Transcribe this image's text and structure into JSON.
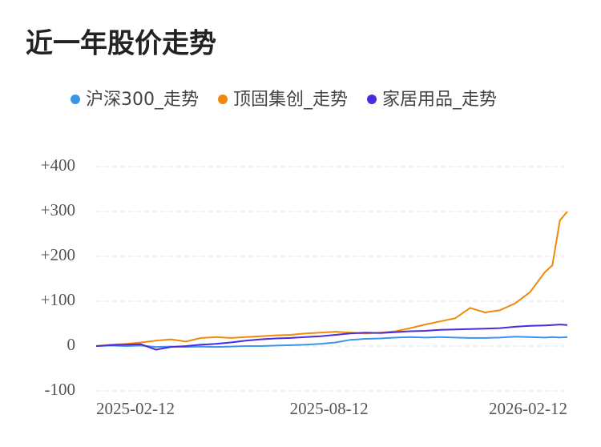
{
  "chart_data": {
    "type": "line",
    "title": "近一年股价走势",
    "x": [
      "2025-01-06",
      "2025-01-20",
      "2025-02-03",
      "2025-02-17",
      "2025-03-03",
      "2025-03-17",
      "2025-03-31",
      "2025-04-14",
      "2025-04-28",
      "2025-05-12",
      "2025-05-26",
      "2025-06-09",
      "2025-06-23",
      "2025-07-07",
      "2025-07-21",
      "2025-08-04",
      "2025-08-18",
      "2025-09-01",
      "2025-09-15",
      "2025-09-29",
      "2025-10-13",
      "2025-10-27",
      "2025-11-10",
      "2025-11-24",
      "2025-12-08",
      "2025-12-22",
      "2026-01-05",
      "2026-01-19",
      "2026-02-02",
      "2026-02-16",
      "2026-03-02",
      "2026-03-09",
      "2026-03-16",
      "2026-03-23"
    ],
    "series": [
      {
        "name": "沪深300_走势",
        "color": "#3a96e8",
        "values": [
          0,
          1,
          0,
          1,
          -2,
          -1,
          -2,
          -1,
          -2,
          -1,
          0,
          0,
          1,
          2,
          3,
          5,
          8,
          14,
          16,
          17,
          19,
          20,
          19,
          20,
          19,
          18,
          18,
          19,
          21,
          20,
          19,
          20,
          19,
          20
        ]
      },
      {
        "name": "顶固集创_走势",
        "color": "#f08a0c",
        "values": [
          0,
          3,
          5,
          8,
          12,
          15,
          10,
          18,
          20,
          18,
          20,
          22,
          24,
          25,
          28,
          30,
          32,
          30,
          28,
          30,
          33,
          40,
          48,
          55,
          62,
          85,
          75,
          80,
          95,
          120,
          165,
          180,
          280,
          300
        ]
      },
      {
        "name": "家居用品_走势",
        "color": "#4a2be0",
        "values": [
          0,
          2,
          3,
          4,
          -8,
          -2,
          0,
          3,
          5,
          8,
          12,
          15,
          17,
          18,
          20,
          22,
          25,
          28,
          30,
          29,
          31,
          33,
          34,
          36,
          37,
          38,
          39,
          40,
          43,
          45,
          46,
          47,
          48,
          47
        ]
      }
    ],
    "xlim": [
      "2025-01-06",
      "2026-03-23"
    ],
    "xticks": [
      "2025-02-12",
      "2025-08-12",
      "2026-02-12"
    ],
    "ylim": [
      -100,
      400
    ],
    "yticks": [
      {
        "value": 400,
        "label": "+400"
      },
      {
        "value": 300,
        "label": "+300"
      },
      {
        "value": 200,
        "label": "+200"
      },
      {
        "value": 100,
        "label": "+100"
      },
      0,
      -100
    ],
    "grid": true
  }
}
